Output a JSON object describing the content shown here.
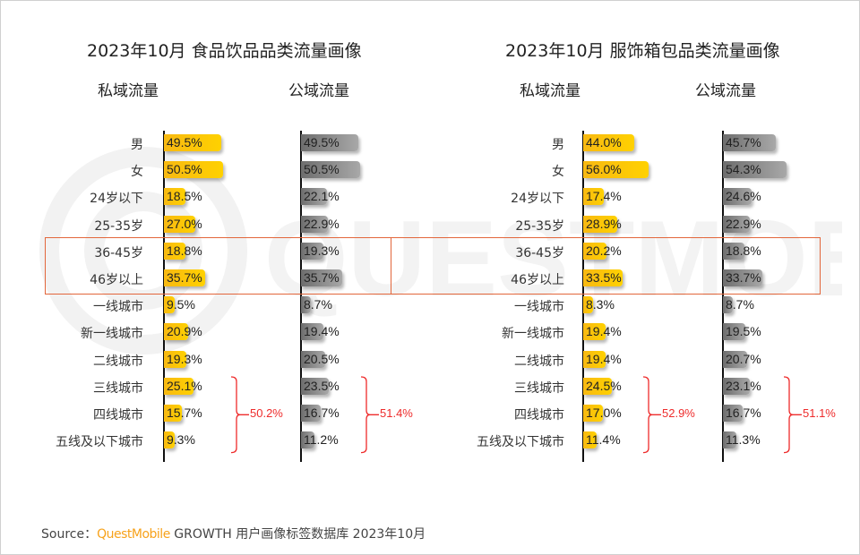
{
  "chart_data": [
    {
      "type": "bar",
      "orientation": "horizontal",
      "title": "2023年10月 食品饮品品类流量画像",
      "categories": [
        "男",
        "女",
        "24岁以下",
        "25-35岁",
        "36-45岁",
        "46岁以上",
        "一线城市",
        "新一线城市",
        "二线城市",
        "三线城市",
        "四线城市",
        "五线及以下城市"
      ],
      "series": [
        {
          "name": "私域流量",
          "color": "#FFC20E",
          "values": [
            49.5,
            50.5,
            18.5,
            27.0,
            18.8,
            35.7,
            9.5,
            20.9,
            19.3,
            25.1,
            15.7,
            9.3
          ]
        },
        {
          "name": "公域流量",
          "color": "#8C8C8C",
          "values": [
            49.5,
            50.5,
            22.1,
            22.9,
            19.3,
            35.7,
            8.7,
            19.4,
            20.5,
            23.5,
            16.7,
            11.2
          ]
        }
      ],
      "value_suffix": "%",
      "highlighted_categories": [
        "36-45岁",
        "46岁以上"
      ],
      "annotations": [
        {
          "series": "私域流量",
          "categories": [
            "三线城市",
            "四线城市",
            "五线及以下城市"
          ],
          "text": "50.2%"
        },
        {
          "series": "公域流量",
          "categories": [
            "三线城市",
            "四线城市",
            "五线及以下城市"
          ],
          "text": "51.4%"
        }
      ]
    },
    {
      "type": "bar",
      "orientation": "horizontal",
      "title": "2023年10月 服饰箱包品类流量画像",
      "categories": [
        "男",
        "女",
        "24岁以下",
        "25-35岁",
        "36-45岁",
        "46岁以上",
        "一线城市",
        "新一线城市",
        "二线城市",
        "三线城市",
        "四线城市",
        "五线及以下城市"
      ],
      "series": [
        {
          "name": "私域流量",
          "color": "#FFC20E",
          "values": [
            44.0,
            56.0,
            17.4,
            28.9,
            20.2,
            33.5,
            8.3,
            19.4,
            19.4,
            24.5,
            17.0,
            11.4
          ]
        },
        {
          "name": "公域流量",
          "color": "#8C8C8C",
          "values": [
            45.7,
            54.3,
            24.6,
            22.9,
            18.8,
            33.7,
            8.7,
            19.5,
            20.7,
            23.1,
            16.7,
            11.3
          ]
        }
      ],
      "value_suffix": "%",
      "highlighted_categories": [
        "36-45岁",
        "46岁以上"
      ],
      "annotations": [
        {
          "series": "私域流量",
          "categories": [
            "三线城市",
            "四线城市",
            "五线及以下城市"
          ],
          "text": "52.9%"
        },
        {
          "series": "公域流量",
          "categories": [
            "三线城市",
            "四线城市",
            "五线及以下城市"
          ],
          "text": "51.1%"
        }
      ]
    }
  ],
  "colors": {
    "private": "#FFC20E",
    "public": "#8C8C8C",
    "highlight_box": "#E2663B",
    "annotation": "#EE2B2B",
    "brand": "#F7A21B"
  },
  "watermark": "QUESTMOBILE",
  "footer": {
    "prefix": "Source：",
    "brand": "QuestMobile",
    "rest": " GROWTH 用户画像标签数据库 2023年10月"
  }
}
